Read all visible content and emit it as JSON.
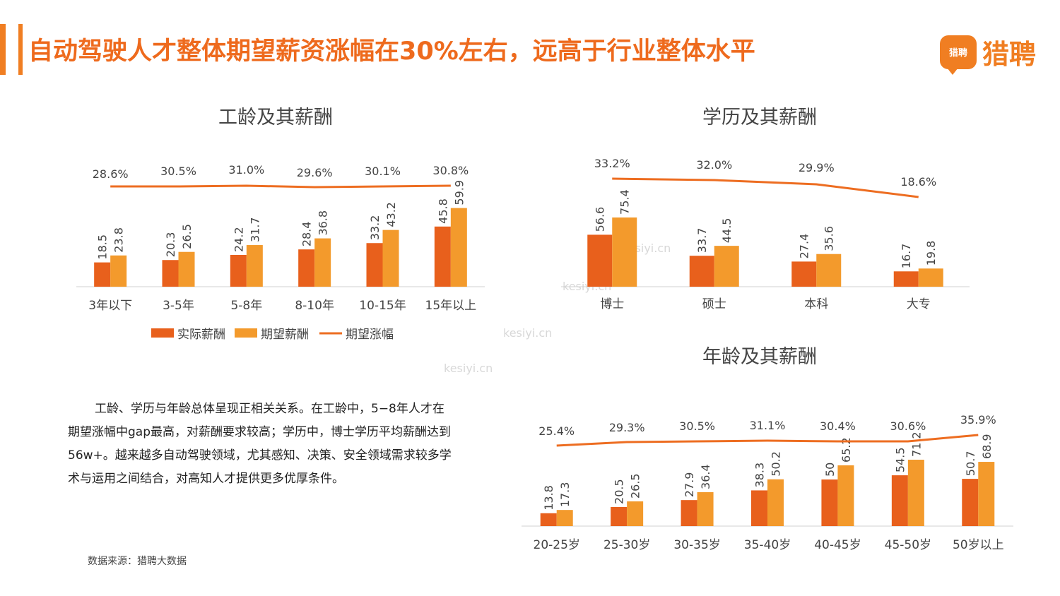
{
  "page_title": "自动驾驶人才整体期望薪资涨幅在30%左右，远高于行业整体水平",
  "logo": {
    "badge": "猎聘",
    "text": "猎聘"
  },
  "colors": {
    "actual": "#e8601c",
    "expected": "#f39a2c",
    "growth": "#ed6d21",
    "title": "#ee6a1d"
  },
  "legend": {
    "actual": "实际薪酬",
    "expected": "期望薪酬",
    "growth": "期望涨幅"
  },
  "summary": "工龄、学历与年龄总体呈现正相关关系。在工龄中，5−8年人才在期望涨幅中gap最高，对薪酬要求较高；学历中，博士学历平均薪酬达到56w+。越来越多自动驾驶领域，尤其感知、决策、安全领域需求较多学术与运用之间结合，对高知人才提供更多优厚条件。",
  "source": "数据来源：猎聘大数据",
  "watermark": "kesiyi.cn",
  "chart_data": [
    {
      "type": "bar",
      "title": "工龄及其薪酬",
      "categories": [
        "3年以下",
        "3-5年",
        "5-8年",
        "8-10年",
        "10-15年",
        "15年以上"
      ],
      "series": [
        {
          "name": "实际薪酬",
          "values": [
            18.5,
            20.3,
            24.2,
            28.4,
            33.2,
            45.8
          ]
        },
        {
          "name": "期望薪酬",
          "values": [
            23.8,
            26.5,
            31.7,
            36.8,
            43.2,
            59.9
          ]
        }
      ],
      "growth": {
        "name": "期望涨幅",
        "values": [
          28.6,
          30.5,
          31.0,
          29.6,
          30.1,
          30.8
        ],
        "labels": [
          "28.6%",
          "30.5%",
          "31.0%",
          "29.6%",
          "30.1%",
          "30.8%"
        ]
      }
    },
    {
      "type": "bar",
      "title": "学历及其薪酬",
      "categories": [
        "博士",
        "硕士",
        "本科",
        "大专"
      ],
      "series": [
        {
          "name": "实际薪酬",
          "values": [
            56.6,
            33.7,
            27.4,
            16.7
          ]
        },
        {
          "name": "期望薪酬",
          "values": [
            75.4,
            44.5,
            35.6,
            19.8
          ]
        }
      ],
      "growth": {
        "name": "期望涨幅",
        "values": [
          33.2,
          32.0,
          29.9,
          18.6
        ],
        "labels": [
          "33.2%",
          "32.0%",
          "29.9%",
          "18.6%"
        ]
      }
    },
    {
      "type": "bar",
      "title": "年龄及其薪酬",
      "categories": [
        "20-25岁",
        "25-30岁",
        "30-35岁",
        "35-40岁",
        "40-45岁",
        "45-50岁",
        "50岁以上"
      ],
      "series": [
        {
          "name": "实际薪酬",
          "values": [
            13.8,
            20.5,
            27.9,
            38.3,
            50,
            54.5,
            50.7
          ]
        },
        {
          "name": "期望薪酬",
          "values": [
            17.3,
            26.5,
            36.4,
            50.2,
            65.2,
            71.2,
            68.9
          ]
        }
      ],
      "growth": {
        "name": "期望涨幅",
        "values": [
          25.4,
          29.3,
          30.5,
          31.1,
          30.4,
          30.6,
          35.9
        ],
        "labels": [
          "25.4%",
          "29.3%",
          "30.5%",
          "31.1%",
          "30.4%",
          "30.6%",
          "35.9%"
        ]
      }
    }
  ]
}
